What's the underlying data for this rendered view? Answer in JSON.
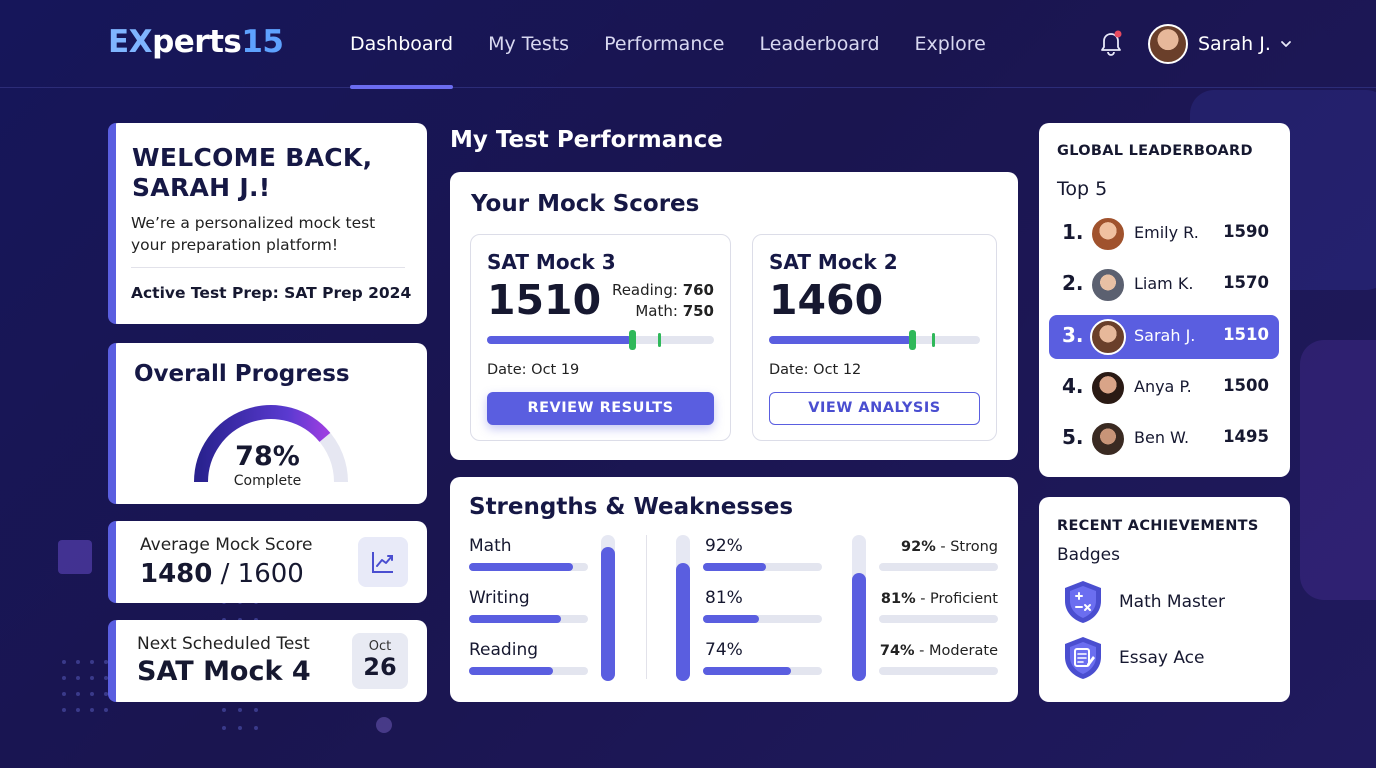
{
  "brand": {
    "logo_ex": "EX",
    "logo_perts": "perts",
    "logo_num": "15"
  },
  "nav": {
    "items": [
      {
        "label": "Dashboard",
        "active": true
      },
      {
        "label": "My Tests",
        "active": false
      },
      {
        "label": "Performance",
        "active": false
      },
      {
        "label": "Leaderboard",
        "active": false
      },
      {
        "label": "Explore",
        "active": false
      }
    ],
    "user_name": "Sarah J.",
    "notification_dot_color": "#e84a5f"
  },
  "welcome": {
    "title_line1": "WELCOME BACK,",
    "title_line2": "SARAH J.!",
    "subtitle_line1": "We’re a personalized mock test",
    "subtitle_line2": "your  preparation platform!",
    "active_prep": "Active Test Prep: SAT Prep 2024"
  },
  "progress": {
    "title": "Overall Progress",
    "percent_label": "78%",
    "percent_value": 78,
    "caption": "Complete"
  },
  "average": {
    "label": "Average Mock Score",
    "score": "1480",
    "separator": "/",
    "max": "1600"
  },
  "next_test": {
    "label": "Next Scheduled Test",
    "name": "SAT Mock 4",
    "month": "Oct",
    "day": "26"
  },
  "performance": {
    "section_title": "My Test Performance",
    "mock_title": "Your Mock Scores",
    "mocks": [
      {
        "name": "SAT Mock 3",
        "score": "1510",
        "reading_label": "Reading:",
        "reading": "760",
        "math_label": "Math:",
        "math": "750",
        "progress_fraction": 0.64,
        "date": "Date: Oct 19",
        "button": "REVIEW RESULTS"
      },
      {
        "name": "SAT Mock 2",
        "score": "1460",
        "progress_fraction": 0.68,
        "date": "Date: Oct 12",
        "button": "VIEW ANALYSIS"
      }
    ]
  },
  "strengths": {
    "title": "Strengths & Weaknesses",
    "subjects": [
      {
        "name": "Math",
        "fill": 0.92,
        "pct": "92%",
        "rating_pct": "92%",
        "rating": " - Strong"
      },
      {
        "name": "Writing",
        "fill": 0.81,
        "pct": "81%",
        "rating_pct": "81%",
        "rating": " - Proficient"
      },
      {
        "name": "Reading",
        "fill": 0.74,
        "pct": "74%",
        "rating_pct": "74%",
        "rating": " - Moderate"
      }
    ],
    "vertical_levels": [
      0.92,
      0.81,
      0.74
    ]
  },
  "leaderboard": {
    "title": "GLOBAL LEADERBOARD",
    "subtitle": "Top 5",
    "rows": [
      {
        "rank": "1.",
        "name": "Emily R.",
        "score": "1590",
        "highlight": false
      },
      {
        "rank": "2.",
        "name": "Liam K.",
        "score": "1570",
        "highlight": false
      },
      {
        "rank": "3.",
        "name": "Sarah J.",
        "score": "1510",
        "highlight": true
      },
      {
        "rank": "4.",
        "name": "Anya P.",
        "score": "1500",
        "highlight": false
      },
      {
        "rank": "5.",
        "name": "Ben W.",
        "score": "1495",
        "highlight": false
      }
    ]
  },
  "achievements": {
    "title": "RECENT ACHIEVEMENTS",
    "subtitle": "Badges",
    "items": [
      {
        "name": "Math Master",
        "icon": "calculator-badge-icon"
      },
      {
        "name": "Essay Ace",
        "icon": "essay-badge-icon"
      }
    ]
  },
  "colors": {
    "accent": "#5a5ee0",
    "success": "#2fb85a",
    "background": "#16165a"
  }
}
